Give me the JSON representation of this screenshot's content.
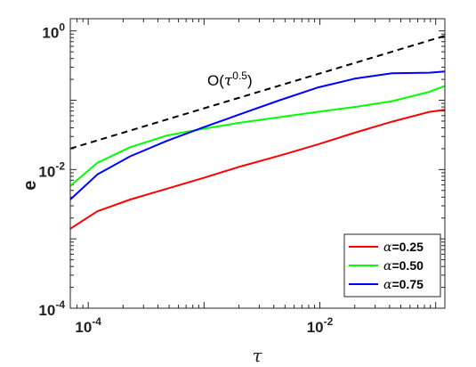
{
  "chart_data": {
    "type": "line",
    "title": "",
    "xlabel": "τ",
    "ylabel": "e",
    "xscale": "log",
    "yscale": "log",
    "xlim": [
      7e-05,
      0.12
    ],
    "ylim": [
      0.0001,
      1.5
    ],
    "xticks": [
      {
        "value": 0.0001,
        "base": "10",
        "exp": "-4"
      },
      {
        "value": 0.01,
        "base": "10",
        "exp": "-2"
      }
    ],
    "yticks": [
      {
        "value": 0.0001,
        "base": "10",
        "exp": "-4"
      },
      {
        "value": 0.01,
        "base": "10",
        "exp": "-2"
      },
      {
        "value": 1,
        "base": "10",
        "exp": "0"
      }
    ],
    "grid": false,
    "legend_position": "bottom-right",
    "annotation": {
      "prefix": "O(",
      "sym": "τ",
      "exp": "0.5",
      "suffix": ")",
      "x": 0.00045,
      "y": 0.25
    },
    "reference_line": {
      "name": "O(τ^0.5)",
      "style": "dashed",
      "color": "#000000",
      "x": [
        7e-05,
        0.12
      ],
      "y": [
        0.0201,
        0.85
      ]
    },
    "series": [
      {
        "name": "α=0.25",
        "label_sym": "α",
        "label_rest": "=0.25",
        "color": "#ff0000",
        "x": [
          7e-05,
          0.00012,
          0.00023,
          0.00048,
          0.001,
          0.002,
          0.0045,
          0.0095,
          0.02,
          0.042,
          0.088,
          0.12
        ],
        "y": [
          0.0014,
          0.0025,
          0.0037,
          0.0053,
          0.0076,
          0.0109,
          0.0159,
          0.0229,
          0.034,
          0.049,
          0.068,
          0.073
        ]
      },
      {
        "name": "α=0.50",
        "label_sym": "α",
        "label_rest": "=0.50",
        "color": "#00ff00",
        "x": [
          7e-05,
          0.00012,
          0.00023,
          0.00048,
          0.001,
          0.002,
          0.0045,
          0.0095,
          0.02,
          0.042,
          0.088,
          0.12
        ],
        "y": [
          0.0058,
          0.0125,
          0.021,
          0.031,
          0.039,
          0.047,
          0.057,
          0.068,
          0.08,
          0.097,
          0.132,
          0.16
        ]
      },
      {
        "name": "α=0.75",
        "label_sym": "α",
        "label_rest": "=0.75",
        "color": "#0000ff",
        "x": [
          7e-05,
          0.00012,
          0.00023,
          0.00048,
          0.001,
          0.002,
          0.0045,
          0.0095,
          0.02,
          0.042,
          0.088,
          0.12
        ],
        "y": [
          0.0037,
          0.0085,
          0.0155,
          0.026,
          0.041,
          0.062,
          0.1,
          0.152,
          0.205,
          0.245,
          0.25,
          0.26
        ]
      }
    ]
  }
}
